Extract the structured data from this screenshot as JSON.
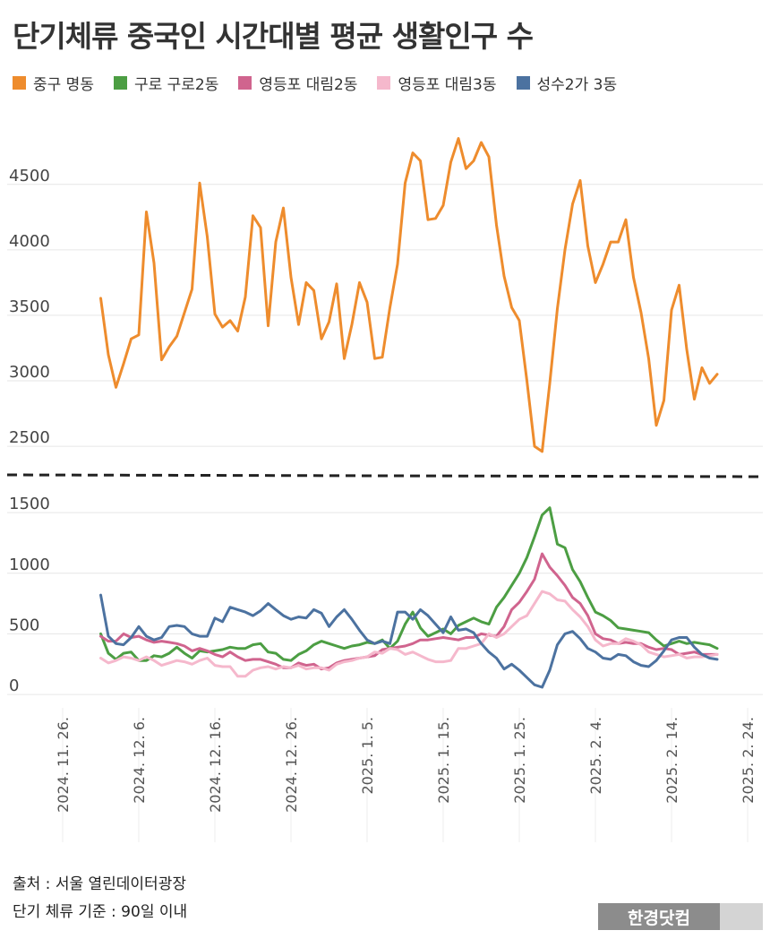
{
  "title": "단기체류 중국인 시간대별 평균 생활인구 수",
  "legend": [
    {
      "name": "중구 명동",
      "color": "#ee8c2d"
    },
    {
      "name": "구로 구로2동",
      "color": "#4c9e43"
    },
    {
      "name": "영등포 대림2동",
      "color": "#d0648e"
    },
    {
      "name": "영등포 대림3동",
      "color": "#f5b8cc"
    },
    {
      "name": "성수2가 3동",
      "color": "#4c72a0"
    }
  ],
  "footer": {
    "source": "출처 : 서울 열린데이터광장",
    "note": "단기 체류 기준 : 90일 이내",
    "logo": "한경닷컴"
  },
  "chart_data": {
    "type": "line",
    "x_dates": [
      "2024-12-01",
      "2024-12-02",
      "2024-12-03",
      "2024-12-04",
      "2024-12-05",
      "2024-12-06",
      "2024-12-07",
      "2024-12-08",
      "2024-12-09",
      "2024-12-10",
      "2024-12-11",
      "2024-12-12",
      "2024-12-13",
      "2024-12-14",
      "2024-12-15",
      "2024-12-16",
      "2024-12-17",
      "2024-12-18",
      "2024-12-19",
      "2024-12-20",
      "2024-12-21",
      "2024-12-22",
      "2024-12-23",
      "2024-12-24",
      "2024-12-25",
      "2024-12-26",
      "2024-12-27",
      "2024-12-28",
      "2024-12-29",
      "2024-12-30",
      "2024-12-31",
      "2025-01-01",
      "2025-01-02",
      "2025-01-03",
      "2025-01-04",
      "2025-01-05",
      "2025-01-06",
      "2025-01-07",
      "2025-01-08",
      "2025-01-09",
      "2025-01-10",
      "2025-01-11",
      "2025-01-12",
      "2025-01-13",
      "2025-01-14",
      "2025-01-15",
      "2025-01-16",
      "2025-01-17",
      "2025-01-18",
      "2025-01-19",
      "2025-01-20",
      "2025-01-21",
      "2025-01-22",
      "2025-01-23",
      "2025-01-24",
      "2025-01-25",
      "2025-01-26",
      "2025-01-27",
      "2025-01-28",
      "2025-01-29",
      "2025-01-30",
      "2025-01-31",
      "2025-02-01",
      "2025-02-02",
      "2025-02-03",
      "2025-02-04",
      "2025-02-05",
      "2025-02-06",
      "2025-02-07",
      "2025-02-08",
      "2025-02-09",
      "2025-02-10",
      "2025-02-11",
      "2025-02-12",
      "2025-02-13",
      "2025-02-14",
      "2025-02-15",
      "2025-02-16",
      "2025-02-17",
      "2025-02-18",
      "2025-02-19",
      "2025-02-20"
    ],
    "x_ticks": [
      "2024. 11. 26.",
      "2024. 12. 6.",
      "2024. 12. 16.",
      "2024. 12. 26.",
      "2025. 1. 5.",
      "2025. 1. 15.",
      "2025. 1. 25.",
      "2025. 2. 4.",
      "2025. 2. 14.",
      "2025. 2. 24."
    ],
    "x_range": [
      "2024-11-26",
      "2025-02-24"
    ],
    "grid": true,
    "legend_position": "top",
    "panels": [
      {
        "name": "top",
        "yticks": [
          2500,
          3000,
          3500,
          4000,
          4500
        ],
        "ylim": [
          2350,
          4950
        ],
        "series": [
          {
            "name": "중구 명동",
            "values": [
              3630,
              3200,
              2950,
              3130,
              3320,
              3350,
              4290,
              3900,
              3160,
              3260,
              3340,
              3520,
              3700,
              4510,
              4100,
              3510,
              3410,
              3460,
              3380,
              3640,
              4260,
              4170,
              3420,
              4060,
              4320,
              3790,
              3430,
              3750,
              3690,
              3320,
              3450,
              3740,
              3170,
              3430,
              3750,
              3600,
              3170,
              3180,
              3560,
              3890,
              4510,
              4740,
              4680,
              4230,
              4240,
              4340,
              4670,
              4850,
              4620,
              4680,
              4820,
              4710,
              4190,
              3800,
              3560,
              3460,
              3000,
              2500,
              2460,
              2980,
              3550,
              4000,
              4350,
              4530,
              4030,
              3750,
              3890,
              4060,
              4060,
              4230,
              3790,
              3520,
              3170,
              2660,
              2850,
              3540,
              3730,
              3240,
              2860,
              3100,
              2980,
              3050
            ]
          }
        ]
      },
      {
        "name": "bottom",
        "yticks": [
          0,
          500,
          1000,
          1500
        ],
        "ylim": [
          -110,
          1700
        ],
        "series": [
          {
            "name": "구로 구로2동",
            "values": [
              500,
              340,
              290,
              340,
              350,
              280,
              280,
              320,
              310,
              340,
              390,
              340,
              300,
              360,
              350,
              360,
              370,
              390,
              380,
              380,
              410,
              420,
              350,
              340,
              290,
              280,
              330,
              360,
              410,
              440,
              420,
              400,
              380,
              400,
              410,
              430,
              420,
              450,
              380,
              440,
              580,
              680,
              550,
              480,
              510,
              540,
              500,
              570,
              600,
              630,
              600,
              580,
              720,
              800,
              900,
              1000,
              1130,
              1300,
              1480,
              1540,
              1240,
              1210,
              1030,
              930,
              800,
              680,
              650,
              610,
              550,
              540,
              530,
              520,
              510,
              450,
              400,
              420,
              440,
              420,
              430,
              420,
              410,
              380
            ]
          },
          {
            "name": "영등포 대림2동",
            "values": [
              480,
              440,
              440,
              500,
              470,
              480,
              450,
              430,
              440,
              430,
              420,
              400,
              360,
              380,
              360,
              330,
              310,
              350,
              310,
              280,
              290,
              290,
              270,
              250,
              220,
              220,
              260,
              240,
              250,
              210,
              220,
              260,
              280,
              290,
              300,
              310,
              320,
              370,
              380,
              390,
              400,
              420,
              450,
              450,
              460,
              470,
              460,
              450,
              470,
              470,
              500,
              490,
              480,
              560,
              700,
              760,
              850,
              950,
              1160,
              1050,
              980,
              900,
              800,
              750,
              650,
              500,
              460,
              450,
              420,
              430,
              420,
              420,
              390,
              370,
              380,
              370,
              330,
              340,
              350,
              330,
              330,
              330
            ]
          },
          {
            "name": "영등포 대림3동",
            "values": [
              300,
              260,
              280,
              310,
              300,
              280,
              310,
              280,
              240,
              260,
              280,
              270,
              250,
              280,
              300,
              240,
              230,
              230,
              150,
              150,
              200,
              220,
              230,
              210,
              230,
              220,
              240,
              210,
              220,
              220,
              200,
              250,
              270,
              280,
              300,
              310,
              350,
              340,
              380,
              370,
              330,
              350,
              320,
              290,
              270,
              270,
              280,
              380,
              380,
              400,
              420,
              500,
              470,
              500,
              560,
              620,
              650,
              750,
              850,
              830,
              780,
              770,
              700,
              640,
              560,
              450,
              400,
              420,
              420,
              460,
              440,
              410,
              350,
              330,
              310,
              320,
              330,
              300,
              310,
              310,
              320,
              330
            ]
          },
          {
            "name": "성수2가 3동",
            "values": [
              820,
              480,
              420,
              410,
              470,
              560,
              480,
              450,
              470,
              560,
              570,
              560,
              500,
              480,
              480,
              630,
              600,
              720,
              700,
              680,
              650,
              690,
              750,
              700,
              650,
              620,
              640,
              630,
              700,
              670,
              560,
              640,
              700,
              620,
              530,
              450,
              420,
              440,
              420,
              680,
              680,
              620,
              700,
              650,
              580,
              510,
              640,
              530,
              540,
              510,
              420,
              350,
              300,
              210,
              250,
              200,
              140,
              80,
              60,
              200,
              410,
              500,
              520,
              460,
              380,
              350,
              300,
              290,
              330,
              320,
              270,
              240,
              230,
              280,
              360,
              450,
              470,
              470,
              390,
              330,
              300,
              290
            ]
          }
        ]
      }
    ]
  }
}
